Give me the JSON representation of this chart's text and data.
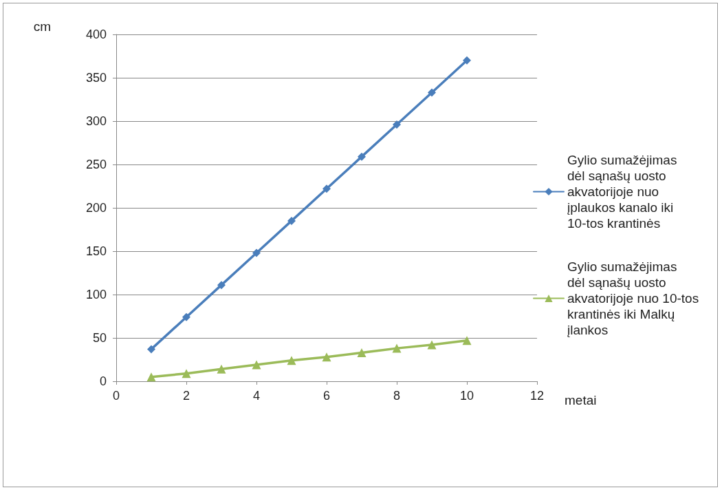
{
  "chart_data": {
    "type": "line",
    "xlabel": "metai",
    "ylabel": "cm",
    "xlim": [
      0,
      12
    ],
    "xticks": [
      0,
      2,
      4,
      6,
      8,
      10,
      12
    ],
    "ylim": [
      0,
      400
    ],
    "yticks": [
      0,
      50,
      100,
      150,
      200,
      250,
      300,
      350,
      400
    ],
    "grid": "y",
    "legend": "right",
    "line_style": "solid",
    "x": [
      1,
      2,
      3,
      4,
      5,
      6,
      7,
      8,
      9,
      10
    ],
    "series": [
      {
        "name": "Gylio sumažėjimas dėl sąnašų uosto akvatorijoje nuo įplaukos kanalo iki 10-tos krantinės",
        "color": "#4a7ebb",
        "marker": "diamond",
        "values": [
          37,
          74,
          111,
          148,
          185,
          222,
          259,
          296,
          333,
          370
        ]
      },
      {
        "name": "Gylio sumažėjimas dėl sąnašų uosto akvatorijoje nuo 10-tos krantinės iki Malkų įlankos",
        "color": "#9bbb59",
        "marker": "triangle",
        "values": [
          5,
          9,
          14,
          19,
          24,
          28,
          33,
          38,
          42,
          47
        ]
      }
    ]
  }
}
